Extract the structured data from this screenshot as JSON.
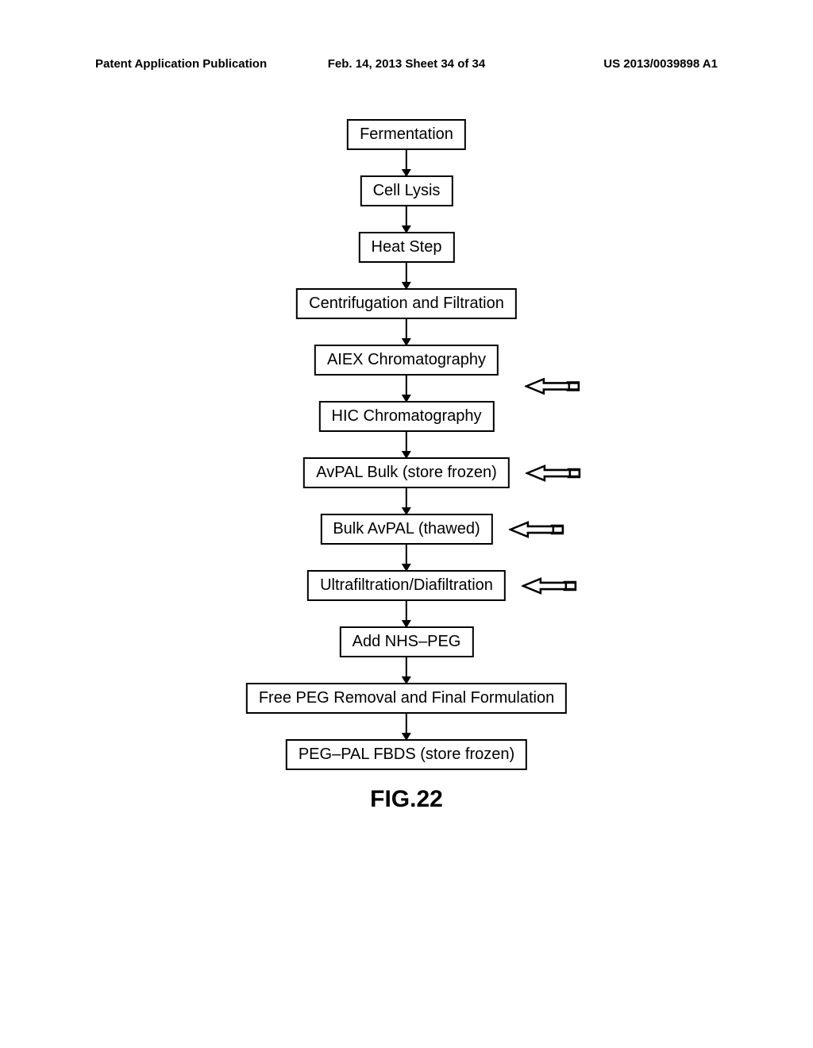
{
  "header": {
    "left": "Patent Application Publication",
    "center": "Feb. 14, 2013  Sheet 34 of 34",
    "right": "US 2013/0039898 A1"
  },
  "flowchart": {
    "type": "flowchart",
    "box_border_color": "#000000",
    "box_border_width": 2.5,
    "box_bg": "#ffffff",
    "text_color": "#000000",
    "box_fontsize": 20,
    "arrow_length": 32,
    "nodes": [
      {
        "label": "Fermentation",
        "side_arrow": false
      },
      {
        "label": "Cell Lysis",
        "side_arrow": false
      },
      {
        "label": "Heat Step",
        "side_arrow": false
      },
      {
        "label": "Centrifugation and Filtration",
        "side_arrow": false
      },
      {
        "label": "AIEX Chromatography",
        "side_arrow": false,
        "side_arrow_between": true
      },
      {
        "label": "HIC Chromatography",
        "side_arrow": false
      },
      {
        "label": "AvPAL Bulk (store frozen)",
        "side_arrow": true
      },
      {
        "label": "Bulk AvPAL (thawed)",
        "side_arrow": true
      },
      {
        "label": "Ultrafiltration/Diafiltration",
        "side_arrow": true
      },
      {
        "label": "Add NHS–PEG",
        "side_arrow": false
      },
      {
        "label": "Free PEG Removal and Final Formulation",
        "side_arrow": false
      },
      {
        "label": "PEG–PAL FBDS (store frozen)",
        "side_arrow": false
      }
    ]
  },
  "figure_label": "FIG.22"
}
